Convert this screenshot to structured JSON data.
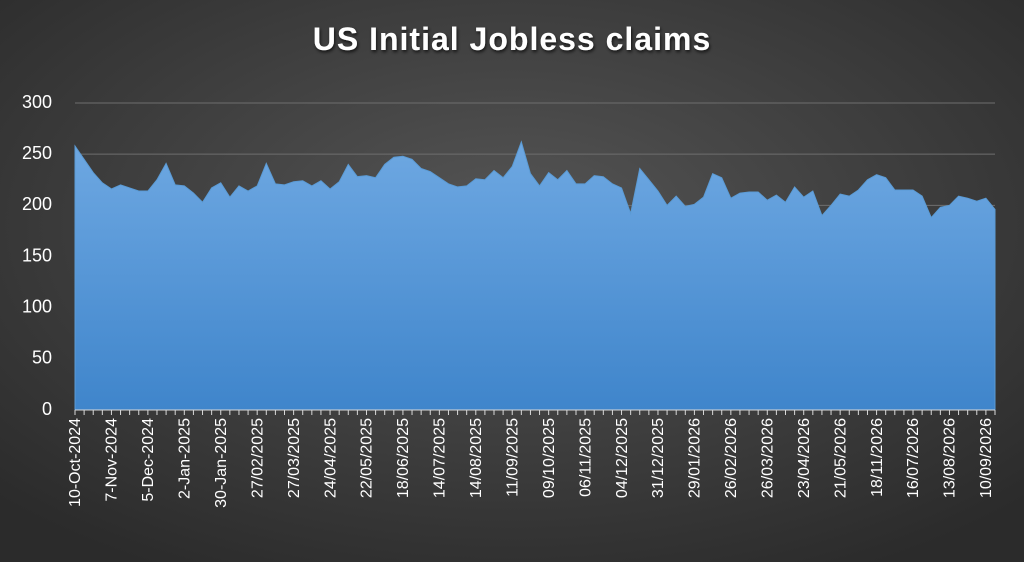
{
  "chart_data": {
    "type": "area",
    "title": "US Initial Jobless claims",
    "categories": [
      "10-Oct-2024",
      null,
      null,
      null,
      "7-Nov-2024",
      null,
      null,
      null,
      "5-Dec-2024",
      null,
      null,
      null,
      "2-Jan-2025",
      null,
      null,
      null,
      "30-Jan-2025",
      null,
      null,
      null,
      "27/02/2025",
      null,
      null,
      null,
      "27/03/2025",
      null,
      null,
      null,
      "24/04/2025",
      null,
      null,
      null,
      "22/05/2025",
      null,
      null,
      null,
      "18/06/2025",
      null,
      null,
      null,
      "14/07/2025",
      null,
      null,
      null,
      "14/08/2025",
      null,
      null,
      null,
      "11/09/2025",
      null,
      null,
      null,
      "09/10/2025",
      null,
      null,
      null,
      "06/11/2025",
      null,
      null,
      null,
      "04/12/2025",
      null,
      null,
      null,
      "31/12/2025",
      null,
      null,
      null,
      "29/01/2026",
      null,
      null,
      null,
      "26/02/2026",
      null,
      null,
      null,
      "26/03/2026",
      null,
      null,
      null,
      "23/04/2026",
      null,
      null,
      null,
      "21/05/2026",
      null,
      null,
      null,
      "18/11/2026",
      null,
      null,
      null,
      "16/07/2026",
      null,
      null,
      null,
      "13/08/2026",
      null,
      null,
      null,
      "10/09/2026",
      null
    ],
    "values": [
      258,
      245,
      232,
      222,
      216,
      220,
      217,
      214,
      214,
      225,
      241,
      220,
      219,
      212,
      203,
      217,
      222,
      208,
      219,
      214,
      219,
      241,
      221,
      220,
      223,
      224,
      219,
      224,
      216,
      223,
      240,
      228,
      229,
      227,
      240,
      247,
      248,
      245,
      236,
      233,
      227,
      221,
      218,
      219,
      226,
      225,
      234,
      227,
      238,
      262,
      231,
      219,
      232,
      225,
      234,
      221,
      221,
      229,
      228,
      221,
      217,
      192,
      236,
      225,
      214,
      200,
      209,
      199,
      201,
      208,
      231,
      227,
      207,
      212,
      213,
      213,
      205,
      210,
      203,
      218,
      208,
      214,
      190,
      200,
      211,
      209,
      215,
      225,
      230,
      227,
      215,
      215,
      215,
      209,
      188,
      198,
      200,
      209,
      207,
      204,
      207,
      196
    ],
    "color": "#5b9bd5",
    "ylim": [
      0,
      300
    ],
    "yticks": [
      0,
      50,
      100,
      150,
      200,
      250,
      300
    ],
    "grid": true
  }
}
